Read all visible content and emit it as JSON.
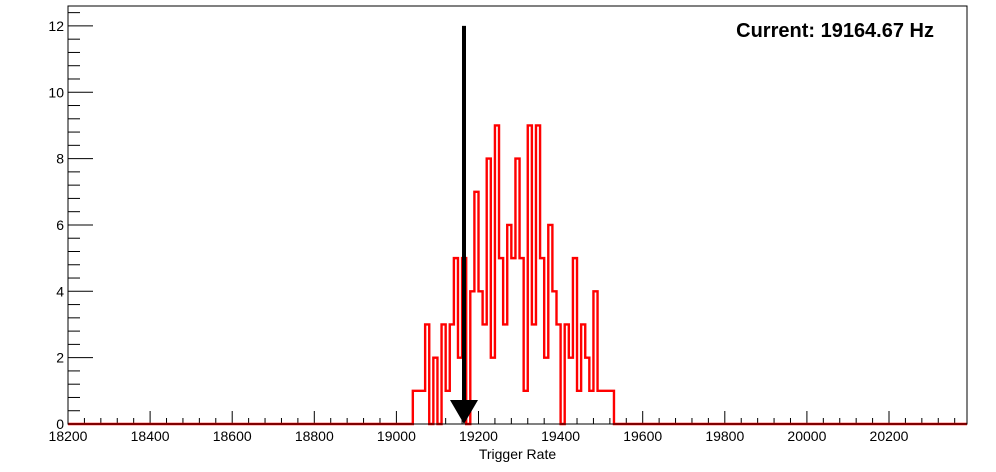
{
  "chart_data": {
    "type": "histogram",
    "title": "",
    "xlabel": "Trigger Rate",
    "ylabel": "",
    "xlim": [
      18200,
      20390
    ],
    "ylim": [
      0,
      12.6
    ],
    "x_ticks": [
      18200,
      18400,
      18600,
      18800,
      19000,
      19200,
      19400,
      19600,
      19800,
      20000,
      20200
    ],
    "y_ticks": [
      0,
      2,
      4,
      6,
      8,
      10,
      12
    ],
    "grid": false,
    "line_color": "#ff0000",
    "bin_width": 10,
    "bins": [
      {
        "x": 19040,
        "v": 1
      },
      {
        "x": 19050,
        "v": 1
      },
      {
        "x": 19060,
        "v": 1
      },
      {
        "x": 19070,
        "v": 3
      },
      {
        "x": 19080,
        "v": 0
      },
      {
        "x": 19090,
        "v": 2
      },
      {
        "x": 19100,
        "v": 0
      },
      {
        "x": 19110,
        "v": 3
      },
      {
        "x": 19120,
        "v": 1
      },
      {
        "x": 19130,
        "v": 3
      },
      {
        "x": 19140,
        "v": 5
      },
      {
        "x": 19150,
        "v": 2
      },
      {
        "x": 19160,
        "v": 5
      },
      {
        "x": 19170,
        "v": 0
      },
      {
        "x": 19180,
        "v": 4
      },
      {
        "x": 19190,
        "v": 7
      },
      {
        "x": 19200,
        "v": 4
      },
      {
        "x": 19210,
        "v": 3
      },
      {
        "x": 19220,
        "v": 8
      },
      {
        "x": 19230,
        "v": 2
      },
      {
        "x": 19240,
        "v": 9
      },
      {
        "x": 19250,
        "v": 5
      },
      {
        "x": 19260,
        "v": 3
      },
      {
        "x": 19270,
        "v": 6
      },
      {
        "x": 19280,
        "v": 5
      },
      {
        "x": 19290,
        "v": 8
      },
      {
        "x": 19300,
        "v": 5
      },
      {
        "x": 19310,
        "v": 1
      },
      {
        "x": 19320,
        "v": 9
      },
      {
        "x": 19330,
        "v": 3
      },
      {
        "x": 19340,
        "v": 9
      },
      {
        "x": 19350,
        "v": 5
      },
      {
        "x": 19360,
        "v": 2
      },
      {
        "x": 19370,
        "v": 6
      },
      {
        "x": 19380,
        "v": 4
      },
      {
        "x": 19390,
        "v": 3
      },
      {
        "x": 19400,
        "v": 0
      },
      {
        "x": 19410,
        "v": 3
      },
      {
        "x": 19420,
        "v": 2
      },
      {
        "x": 19430,
        "v": 5
      },
      {
        "x": 19440,
        "v": 1
      },
      {
        "x": 19450,
        "v": 3
      },
      {
        "x": 19460,
        "v": 2
      },
      {
        "x": 19470,
        "v": 1
      },
      {
        "x": 19480,
        "v": 4
      },
      {
        "x": 19490,
        "v": 1
      },
      {
        "x": 19500,
        "v": 1
      },
      {
        "x": 19510,
        "v": 1
      },
      {
        "x": 19520,
        "v": 1
      },
      {
        "x": 19530,
        "v": 0
      }
    ],
    "current": {
      "label": "Current: 19164.67 Hz",
      "value": 19164.67,
      "arrow_top": 12,
      "arrow_bottom": 0
    }
  }
}
